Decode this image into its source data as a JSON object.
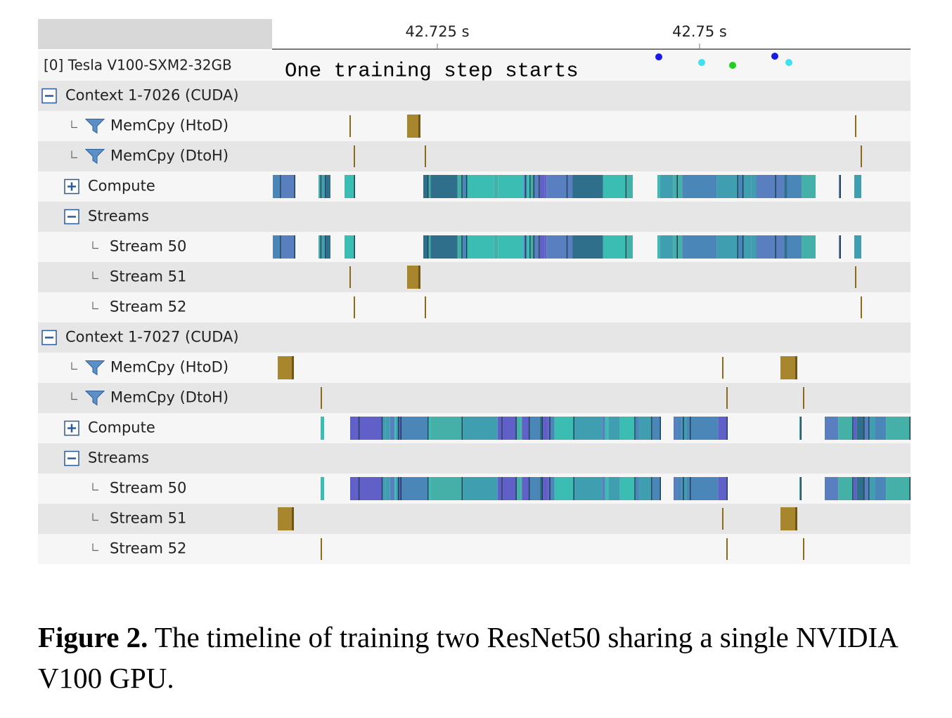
{
  "header": {
    "ticks": [
      "42.725 s",
      "42.75 s"
    ],
    "device": "[0] Tesla V100-SXM2-32GB",
    "annotation": "One training step starts"
  },
  "rows": [
    "Context 1-7026 (CUDA)",
    "MemCpy (HtoD)",
    "MemCpy (DtoH)",
    "Compute",
    "Streams",
    "Stream 50",
    "Stream 51",
    "Stream 52",
    "Context 1-7027 (CUDA)",
    "MemCpy (HtoD)",
    "MemCpy (DtoH)",
    "Compute",
    "Streams",
    "Stream 50",
    "Stream 51",
    "Stream 52"
  ],
  "caption": {
    "label": "Figure 2.",
    "text": "The timeline of training two ResNet50 sharing a single NVIDIA V100 GPU."
  }
}
